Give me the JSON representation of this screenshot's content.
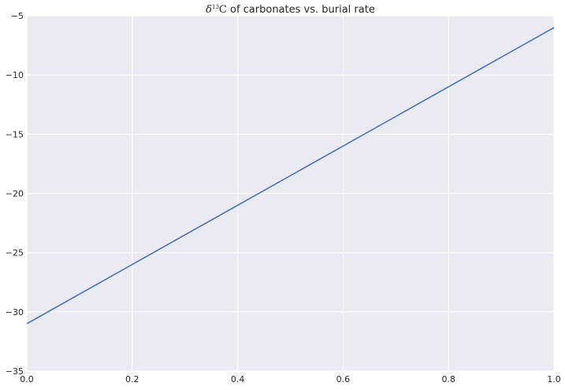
{
  "chart_data": {
    "type": "line",
    "title": {
      "symbol": "δ",
      "superscript": "13",
      "element": "C",
      "rest": " of carbonates vs. burial rate"
    },
    "xlabel": "",
    "ylabel": "",
    "xlim": [
      0.0,
      1.0
    ],
    "ylim": [
      -35,
      -5
    ],
    "x_ticks": [
      0.0,
      0.2,
      0.4,
      0.6,
      0.8,
      1.0
    ],
    "x_tick_labels": [
      "0.0",
      "0.2",
      "0.4",
      "0.6",
      "0.8",
      "1.0"
    ],
    "y_ticks": [
      -35,
      -30,
      -25,
      -20,
      -15,
      -10,
      -5
    ],
    "y_tick_labels": [
      "−35",
      "−30",
      "−25",
      "−20",
      "−15",
      "−10",
      "−5"
    ],
    "grid": true,
    "series": [
      {
        "x": [
          0.0,
          1.0
        ],
        "y": [
          -31,
          -6
        ]
      }
    ],
    "colors": {
      "plot_background": "#eaeaf2",
      "grid": "#ffffff",
      "line": "#4c72b0"
    }
  }
}
